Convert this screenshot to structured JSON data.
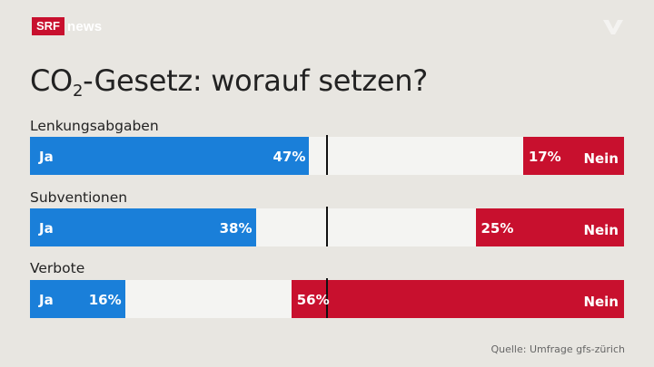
{
  "header": {
    "logo_srf": "SRF",
    "logo_news": "news"
  },
  "title": {
    "prefix": "CO",
    "subscript": "2",
    "suffix": "-Gesetz: worauf setzen?"
  },
  "source": "Quelle: Umfrage gfs-zürich",
  "colors": {
    "ja": "#1a7fd9",
    "nein": "#c8102e",
    "track": "#f4f4f2",
    "background": "#e8e6e1"
  },
  "chart_data": {
    "type": "bar",
    "orientation": "horizontal-stacked",
    "title": "CO2-Gesetz: worauf setzen?",
    "categories": [
      "Lenkungsabgaben",
      "Subventionen",
      "Verbote"
    ],
    "series": [
      {
        "name": "Ja",
        "values": [
          47,
          38,
          16
        ],
        "labels": [
          "47%",
          "38%",
          "16%"
        ]
      },
      {
        "name": "Nein",
        "values": [
          17,
          25,
          56
        ],
        "labels": [
          "17%",
          "25%",
          "56%"
        ]
      }
    ],
    "ja_label": "Ja",
    "nein_label": "Nein",
    "xlim": [
      0,
      100
    ],
    "midline": 50
  }
}
